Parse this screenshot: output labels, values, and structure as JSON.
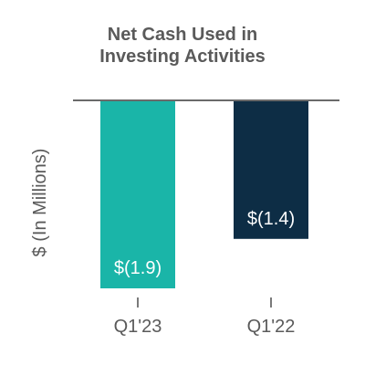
{
  "chart_data": {
    "type": "bar",
    "title": "Net Cash Used in\nInvesting Activities",
    "title_lines": [
      "Net Cash Used in",
      "Investing Activities"
    ],
    "ylabel": "$ (In Millions)",
    "xlabel": "",
    "categories": [
      "Q1'23",
      "Q1'22"
    ],
    "values": [
      -1.9,
      -1.4
    ],
    "data_labels": [
      "$(1.9)",
      "$(1.4)"
    ],
    "colors": [
      "#1ab5a8",
      "#0d2d45"
    ],
    "ylim": [
      -1.9,
      0
    ],
    "grid": false,
    "legend": "none"
  }
}
